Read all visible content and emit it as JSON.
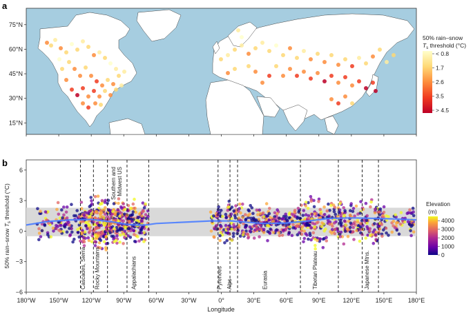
{
  "chart_data": [
    {
      "type": "map",
      "panel": "a",
      "y_ticks": [
        "75°N",
        "60°N",
        "45°N",
        "30°N",
        "15°N"
      ],
      "lat_values": [
        75,
        60,
        45,
        30,
        15
      ],
      "lat_range": [
        8,
        85
      ],
      "x_tick_values": [
        -180,
        -150,
        -120,
        -90,
        -60,
        -30,
        0,
        30,
        60,
        90,
        120,
        150,
        180
      ],
      "ocean_color": "#a6cde0",
      "land_color": "#ffffff",
      "legend": {
        "title_line1": "50% rain–snow",
        "title_line2_prefix": "T",
        "title_line2_sub": "s",
        "title_line2_suffix": " threshold (°C)",
        "labels": [
          "< 0.8",
          "1.7",
          "2.6",
          "3.5",
          "> 4.5"
        ],
        "colors": [
          "#ffffcc",
          "#fed976",
          "#fd8d3c",
          "#f03b20",
          "#bd0026"
        ]
      }
    },
    {
      "type": "scatter",
      "panel": "b",
      "xlabel": "Longitude",
      "ylabel_prefix": "50% rain–snow ",
      "ylabel_T": "T",
      "ylabel_sub": "s",
      "ylabel_suffix": " threshold (°C)",
      "xlim": [
        -180,
        180
      ],
      "ylim": [
        -6,
        7
      ],
      "x_ticks": [
        "180°W",
        "150°W",
        "120°W",
        "90°W",
        "60°W",
        "30°W",
        "0°",
        "30°E",
        "60°E",
        "90°E",
        "120°E",
        "150°E",
        "180°E"
      ],
      "x_tick_values": [
        -180,
        -150,
        -120,
        -90,
        -60,
        -30,
        0,
        30,
        60,
        90,
        120,
        150,
        180
      ],
      "y_ticks": [
        "6",
        "3",
        "0",
        "−3",
        "−6"
      ],
      "y_tick_values": [
        6,
        3,
        0,
        -3,
        -6
      ],
      "shaded_band": [
        -0.5,
        2.3
      ],
      "dashed_lines": [
        -130,
        -118,
        -105,
        -87,
        -67,
        -3,
        8,
        15,
        73,
        108,
        130,
        145
      ],
      "regions": [
        {
          "label": "Cascades, Sierra",
          "x": -124
        },
        {
          "label": "Rocky Mountains",
          "x": -111
        },
        {
          "label": "Southern and\nMidwest US",
          "x": -96
        },
        {
          "label": "Appalachians",
          "x": -77
        },
        {
          "label": "Pyrenees",
          "x": 2
        },
        {
          "label": "Alps",
          "x": 11
        },
        {
          "label": "Eurasia",
          "x": 44
        },
        {
          "label": "Tibetan Plateau",
          "x": 90
        },
        {
          "label": "Japanese Mtns.",
          "x": 138
        }
      ],
      "trend_line": {
        "x": [
          -180,
          -160,
          -140,
          -120,
          -100,
          -90,
          -80,
          -70,
          -60,
          -10,
          0,
          10,
          20,
          40,
          60,
          80,
          100,
          120,
          140,
          160,
          180
        ],
        "y": [
          0.6,
          0.95,
          1.1,
          1.15,
          0.9,
          0.7,
          0.6,
          0.6,
          0.75,
          1.0,
          1.0,
          1.0,
          0.9,
          0.75,
          0.8,
          1.0,
          1.25,
          1.3,
          1.25,
          1.2,
          1.1
        ]
      },
      "legend": {
        "title_line1": "Elevation",
        "title_line2": "(m)",
        "labels": [
          "4000",
          "3000",
          "2000",
          "1000",
          "0"
        ],
        "range": [
          0,
          4500
        ],
        "colors": [
          "#0d0887",
          "#6a00a8",
          "#b12a90",
          "#e16462",
          "#fca636",
          "#f0f921"
        ]
      }
    }
  ]
}
